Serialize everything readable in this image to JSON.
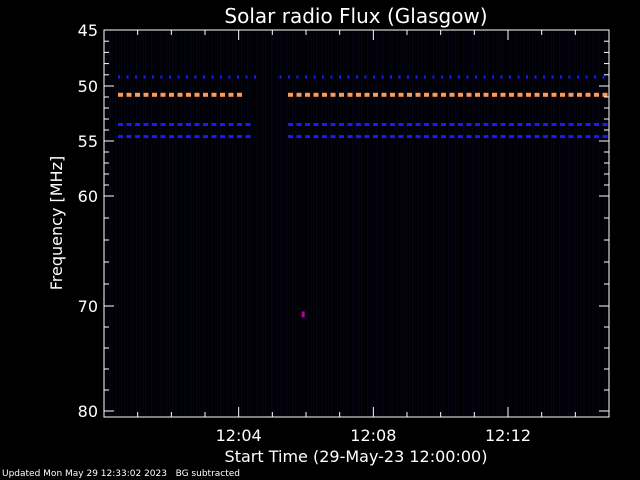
{
  "footer": {
    "updated": "Updated Mon May 29 12:33:02 2023",
    "bg_note": "BG subtracted"
  },
  "chart_data": {
    "type": "heatmap",
    "title": "Solar radio Flux (Glasgow)",
    "xlabel": "Start Time (29-May-23 12:00:00)",
    "ylabel": "Frequency [MHz]",
    "x_unit": "time",
    "x_range": [
      "12:00:00",
      "12:15:00"
    ],
    "x_ticks": [
      "12:04",
      "12:08",
      "12:12"
    ],
    "y_range": [
      45,
      80
    ],
    "y_ticks": [
      45,
      50,
      55,
      60,
      70,
      80
    ],
    "y_scale": "log-like",
    "grid": false,
    "colors": {
      "background": "#000000",
      "frame": "#ffffff",
      "low_intensity": "#0a0a3a",
      "mid_intensity": "#1a1aff",
      "high_intensity": "#ff9a55",
      "spot": "#b000b0"
    },
    "bands": [
      {
        "freq_mhz": 49.2,
        "intensity": "mid",
        "pattern": "dotted",
        "gap": [
          "12:04:30",
          "12:05:10"
        ]
      },
      {
        "freq_mhz": 50.8,
        "intensity": "high",
        "pattern": "dashed",
        "gap": [
          "12:04:00",
          "12:05:20"
        ]
      },
      {
        "freq_mhz": 53.5,
        "intensity": "mid",
        "pattern": "dashed",
        "gap": [
          "12:04:20",
          "12:05:20"
        ]
      },
      {
        "freq_mhz": 54.6,
        "intensity": "mid",
        "pattern": "dashed",
        "gap": [
          "12:04:20",
          "12:05:20"
        ]
      }
    ],
    "spots": [
      {
        "time": "12:05:55",
        "freq_mhz": 70.8,
        "intensity": "spot"
      }
    ]
  }
}
